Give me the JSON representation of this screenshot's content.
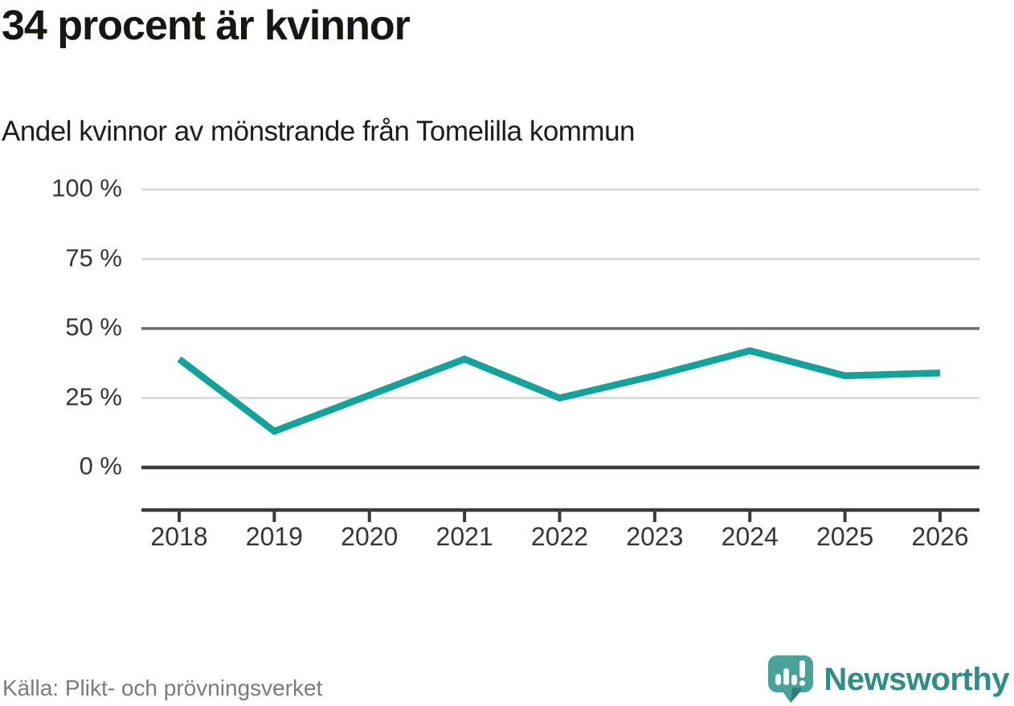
{
  "chart_data": {
    "type": "line",
    "title": "34 procent är kvinnor",
    "subtitle": "Andel kvinnor av mönstrande från Tomelilla kommun",
    "categories": [
      "2018",
      "2019",
      "2020",
      "2021",
      "2022",
      "2023",
      "2024",
      "2025",
      "2026"
    ],
    "series": [
      {
        "name": "Andel kvinnor av mönstrande",
        "values": [
          39,
          13,
          26,
          39,
          25,
          33,
          42,
          33,
          34
        ]
      }
    ],
    "unit": "%",
    "ylim": [
      0,
      100
    ],
    "yticks": [
      0,
      25,
      50,
      75,
      100
    ],
    "ytick_labels": [
      "0 %",
      "25 %",
      "50 %",
      "75 %",
      "100 %"
    ],
    "grid": "horizontal",
    "legend": "none",
    "emphasized_gridlines": [
      0,
      50
    ],
    "line_color": "#13a39a"
  },
  "colors": {
    "line": "#13a39a",
    "grid_light": "#dcdcdc",
    "grid_mid": "#6f6f6f",
    "axis_dark": "#3b3b3b",
    "text_dark": "#161613",
    "text_muted": "#7b7b7b",
    "brand_teal": "#2f8c87",
    "logo_mark": "#4aa39b",
    "logo_mark_shade": "#2e7f79"
  },
  "source": {
    "label": "Källa: Plikt- och prövningsverket"
  },
  "branding": {
    "name": "Newsworthy",
    "icon": "newsworthy-speech-bubble-bar-chart-icon"
  }
}
